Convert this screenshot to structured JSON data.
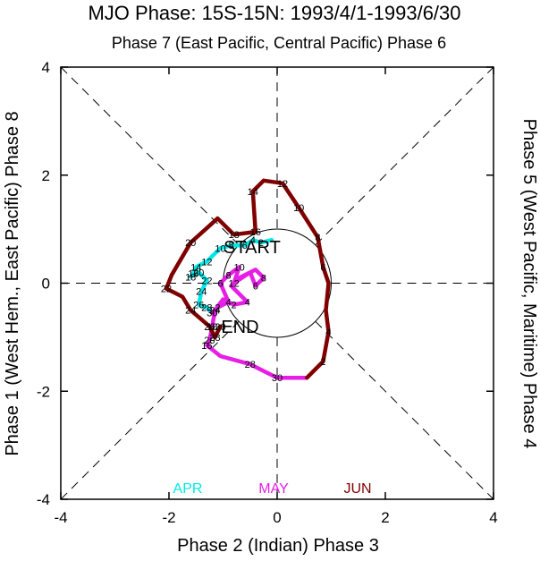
{
  "chart_data": {
    "type": "line",
    "title": "MJO Phase: 15S-15N: 1993/4/1-1993/6/30",
    "subtitle": "Phase 7 (East Pacific, Central Pacific) Phase 6",
    "xlabel": "Phase 2 (Indian) Phase 3",
    "ylabel_left": "Phase 1 (West Hem., East Pacific) Phase 8",
    "ylabel_right": "Phase 5 (West Pacific, Maritime) Phase 4",
    "xlim": [
      -4,
      4
    ],
    "ylim": [
      -4,
      4
    ],
    "xticks": [
      "-4",
      "-2",
      "0",
      "2",
      "4"
    ],
    "yticks": [
      "-4",
      "-2",
      "0",
      "2",
      "4"
    ],
    "grid": "dashed diagonals and axes, unit circle",
    "legend": [
      {
        "name": "APR",
        "color": "#00e8e8"
      },
      {
        "name": "MAY",
        "color": "#e61ee6"
      },
      {
        "name": "JUN",
        "color": "#800000"
      }
    ],
    "annotations": [
      "START",
      "END"
    ],
    "series": [
      {
        "name": "APR",
        "color": "#00e8e8",
        "points": [
          {
            "x": -0.1,
            "y": 0.8,
            "label": ""
          },
          {
            "x": -0.3,
            "y": 0.75,
            "label": "2"
          },
          {
            "x": -0.45,
            "y": 0.8,
            "label": "4"
          },
          {
            "x": -0.6,
            "y": 0.7,
            "label": "6"
          },
          {
            "x": -0.85,
            "y": 0.7,
            "label": "8"
          },
          {
            "x": -1.05,
            "y": 0.65,
            "label": "10"
          },
          {
            "x": -1.15,
            "y": 0.55,
            "label": ""
          },
          {
            "x": -1.3,
            "y": 0.4,
            "label": "12"
          },
          {
            "x": -1.5,
            "y": 0.3,
            "label": "14"
          },
          {
            "x": -1.55,
            "y": 0.18,
            "label": "16"
          },
          {
            "x": -1.6,
            "y": 0.12,
            "label": "18"
          },
          {
            "x": -1.45,
            "y": 0.2,
            "label": "20"
          },
          {
            "x": -1.3,
            "y": 0.05,
            "label": "22"
          },
          {
            "x": -1.4,
            "y": -0.15,
            "label": "24"
          },
          {
            "x": -1.45,
            "y": -0.4,
            "label": "26"
          },
          {
            "x": -1.3,
            "y": -0.45,
            "label": "28"
          },
          {
            "x": -1.2,
            "y": -0.55,
            "label": "30"
          }
        ]
      },
      {
        "name": "MAY",
        "color": "#e61ee6",
        "points": [
          {
            "x": -1.2,
            "y": -0.55,
            "label": ""
          },
          {
            "x": -1.1,
            "y": -0.45,
            "label": "2"
          },
          {
            "x": -0.9,
            "y": -0.35,
            "label": "4"
          },
          {
            "x": -1.05,
            "y": 0.0,
            "label": "6"
          },
          {
            "x": -0.9,
            "y": 0.15,
            "label": "8"
          },
          {
            "x": -0.7,
            "y": 0.3,
            "label": "10"
          },
          {
            "x": -0.8,
            "y": 0.0,
            "label": "12"
          },
          {
            "x": -0.5,
            "y": 0.2,
            "label": ""
          },
          {
            "x": -0.4,
            "y": -0.05,
            "label": "6"
          },
          {
            "x": -0.25,
            "y": 0.1,
            "label": "8"
          },
          {
            "x": -0.4,
            "y": 0.25,
            "label": ""
          },
          {
            "x": -0.7,
            "y": 0.1,
            "label": ""
          },
          {
            "x": -0.85,
            "y": -0.05,
            "label": ""
          },
          {
            "x": -0.55,
            "y": -0.35,
            "label": "4"
          },
          {
            "x": -0.8,
            "y": -0.4,
            "label": "2"
          },
          {
            "x": -1.0,
            "y": -0.3,
            "label": ""
          },
          {
            "x": -1.15,
            "y": -0.5,
            "label": "24"
          },
          {
            "x": -1.2,
            "y": -0.8,
            "label": "18"
          },
          {
            "x": -1.25,
            "y": -1.05,
            "label": "20"
          },
          {
            "x": -1.3,
            "y": -1.15,
            "label": "16"
          },
          {
            "x": -1.05,
            "y": -1.35,
            "label": ""
          },
          {
            "x": -0.5,
            "y": -1.5,
            "label": "28"
          },
          {
            "x": 0.0,
            "y": -1.75,
            "label": "30"
          },
          {
            "x": 0.55,
            "y": -1.75,
            "label": ""
          }
        ]
      },
      {
        "name": "JUN",
        "color": "#800000",
        "points": [
          {
            "x": 0.55,
            "y": -1.75,
            "label": ""
          },
          {
            "x": 0.85,
            "y": -1.45,
            "label": "2"
          },
          {
            "x": 0.95,
            "y": -0.9,
            "label": "4"
          },
          {
            "x": 0.9,
            "y": -0.5,
            "label": ""
          },
          {
            "x": 0.95,
            "y": 0.0,
            "label": ""
          },
          {
            "x": 0.85,
            "y": 0.3,
            "label": "6"
          },
          {
            "x": 0.75,
            "y": 0.85,
            "label": "8"
          },
          {
            "x": 0.4,
            "y": 1.4,
            "label": "10"
          },
          {
            "x": 0.1,
            "y": 1.85,
            "label": "12"
          },
          {
            "x": -0.25,
            "y": 1.9,
            "label": ""
          },
          {
            "x": -0.45,
            "y": 1.7,
            "label": "14"
          },
          {
            "x": -0.4,
            "y": 0.95,
            "label": "16"
          },
          {
            "x": -0.8,
            "y": 0.9,
            "label": "18"
          },
          {
            "x": -1.1,
            "y": 1.2,
            "label": ""
          },
          {
            "x": -1.6,
            "y": 0.75,
            "label": "20"
          },
          {
            "x": -1.95,
            "y": 0.15,
            "label": ""
          },
          {
            "x": -2.05,
            "y": -0.1,
            "label": "22"
          },
          {
            "x": -1.75,
            "y": -0.25,
            "label": ""
          },
          {
            "x": -1.6,
            "y": -0.5,
            "label": "24"
          },
          {
            "x": -1.25,
            "y": -0.8,
            "label": "26"
          },
          {
            "x": -1.15,
            "y": -1.0,
            "label": "28"
          },
          {
            "x": -1.05,
            "y": -0.8,
            "label": "30"
          }
        ]
      }
    ]
  }
}
